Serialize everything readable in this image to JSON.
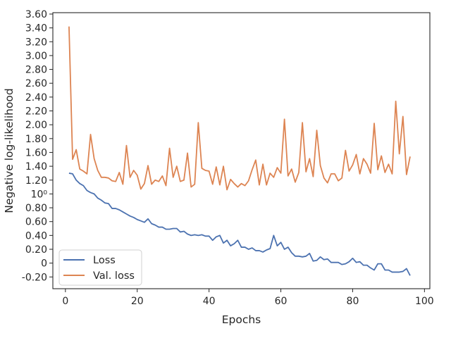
{
  "chart_data": {
    "type": "line",
    "title": "",
    "xlabel": "Epochs",
    "ylabel": "Negative log-likelihood",
    "xlim": [
      -3.5,
      101.5
    ],
    "ylim": [
      -0.37,
      3.62
    ],
    "x_ticks": [
      0,
      20,
      40,
      60,
      80,
      100
    ],
    "x_tick_labels": [
      "0",
      "20",
      "40",
      "60",
      "80",
      "100"
    ],
    "y_ticks": [
      -0.2,
      0,
      0.2,
      0.4,
      0.6,
      0.8,
      1.0,
      1.2,
      1.4,
      1.6,
      1.8,
      2.0,
      2.2,
      2.4,
      2.6,
      2.8,
      3.0,
      3.2,
      3.4,
      3.6
    ],
    "y_tick_labels": [
      "-0.20",
      "0",
      "0.20",
      "0.40",
      "0.60",
      "0.80",
      "10⁰",
      "1.20",
      "1.40",
      "1.60",
      "1.80",
      "2.00",
      "2.20",
      "2.40",
      "2.60",
      "2.80",
      "3.00",
      "3.20",
      "3.40",
      "3.60"
    ],
    "grid": false,
    "legend_position": "lower-left",
    "x": [
      1,
      2,
      3,
      4,
      5,
      6,
      7,
      8,
      9,
      10,
      11,
      12,
      13,
      14,
      15,
      16,
      17,
      18,
      19,
      20,
      21,
      22,
      23,
      24,
      25,
      26,
      27,
      28,
      29,
      30,
      31,
      32,
      33,
      34,
      35,
      36,
      37,
      38,
      39,
      40,
      41,
      42,
      43,
      44,
      45,
      46,
      47,
      48,
      49,
      50,
      51,
      52,
      53,
      54,
      55,
      56,
      57,
      58,
      59,
      60,
      61,
      62,
      63,
      64,
      65,
      66,
      67,
      68,
      69,
      70,
      71,
      72,
      73,
      74,
      75,
      76,
      77,
      78,
      79,
      80,
      81,
      82,
      83,
      84,
      85,
      86,
      87,
      88,
      89,
      90,
      91,
      92,
      93,
      94,
      95,
      96
    ],
    "series": [
      {
        "name": "Loss",
        "color": "#4c72b0",
        "values": [
          1.3,
          1.29,
          1.2,
          1.15,
          1.12,
          1.05,
          1.02,
          1.0,
          0.94,
          0.91,
          0.87,
          0.86,
          0.79,
          0.79,
          0.77,
          0.74,
          0.71,
          0.68,
          0.66,
          0.63,
          0.61,
          0.59,
          0.64,
          0.57,
          0.55,
          0.52,
          0.52,
          0.49,
          0.49,
          0.5,
          0.5,
          0.45,
          0.46,
          0.42,
          0.4,
          0.41,
          0.4,
          0.41,
          0.39,
          0.39,
          0.33,
          0.38,
          0.4,
          0.29,
          0.33,
          0.25,
          0.28,
          0.33,
          0.23,
          0.23,
          0.2,
          0.22,
          0.18,
          0.18,
          0.16,
          0.19,
          0.21,
          0.4,
          0.25,
          0.3,
          0.2,
          0.23,
          0.15,
          0.1,
          0.1,
          0.09,
          0.1,
          0.14,
          0.03,
          0.04,
          0.09,
          0.05,
          0.06,
          0.01,
          0.01,
          0.01,
          -0.02,
          -0.01,
          0.02,
          0.07,
          0.01,
          0.02,
          -0.03,
          -0.03,
          -0.07,
          -0.1,
          -0.01,
          -0.01,
          -0.1,
          -0.1,
          -0.13,
          -0.13,
          -0.13,
          -0.12,
          -0.08,
          -0.18
        ]
      },
      {
        "name": "Val. loss",
        "color": "#dd8452",
        "values": [
          3.42,
          1.5,
          1.64,
          1.36,
          1.33,
          1.29,
          1.86,
          1.51,
          1.34,
          1.24,
          1.24,
          1.23,
          1.19,
          1.18,
          1.31,
          1.14,
          1.7,
          1.24,
          1.34,
          1.27,
          1.07,
          1.15,
          1.41,
          1.14,
          1.2,
          1.18,
          1.26,
          1.12,
          1.66,
          1.24,
          1.4,
          1.18,
          1.2,
          1.59,
          1.1,
          1.14,
          2.03,
          1.37,
          1.34,
          1.33,
          1.14,
          1.39,
          1.13,
          1.4,
          1.06,
          1.21,
          1.15,
          1.1,
          1.15,
          1.12,
          1.19,
          1.35,
          1.49,
          1.13,
          1.43,
          1.13,
          1.3,
          1.24,
          1.38,
          1.3,
          2.08,
          1.26,
          1.36,
          1.17,
          1.31,
          2.03,
          1.32,
          1.51,
          1.25,
          1.92,
          1.41,
          1.23,
          1.16,
          1.29,
          1.29,
          1.19,
          1.23,
          1.63,
          1.33,
          1.42,
          1.57,
          1.29,
          1.51,
          1.43,
          1.3,
          2.02,
          1.35,
          1.55,
          1.31,
          1.43,
          1.29,
          2.34,
          1.58,
          2.12,
          1.28,
          1.54
        ]
      }
    ]
  }
}
